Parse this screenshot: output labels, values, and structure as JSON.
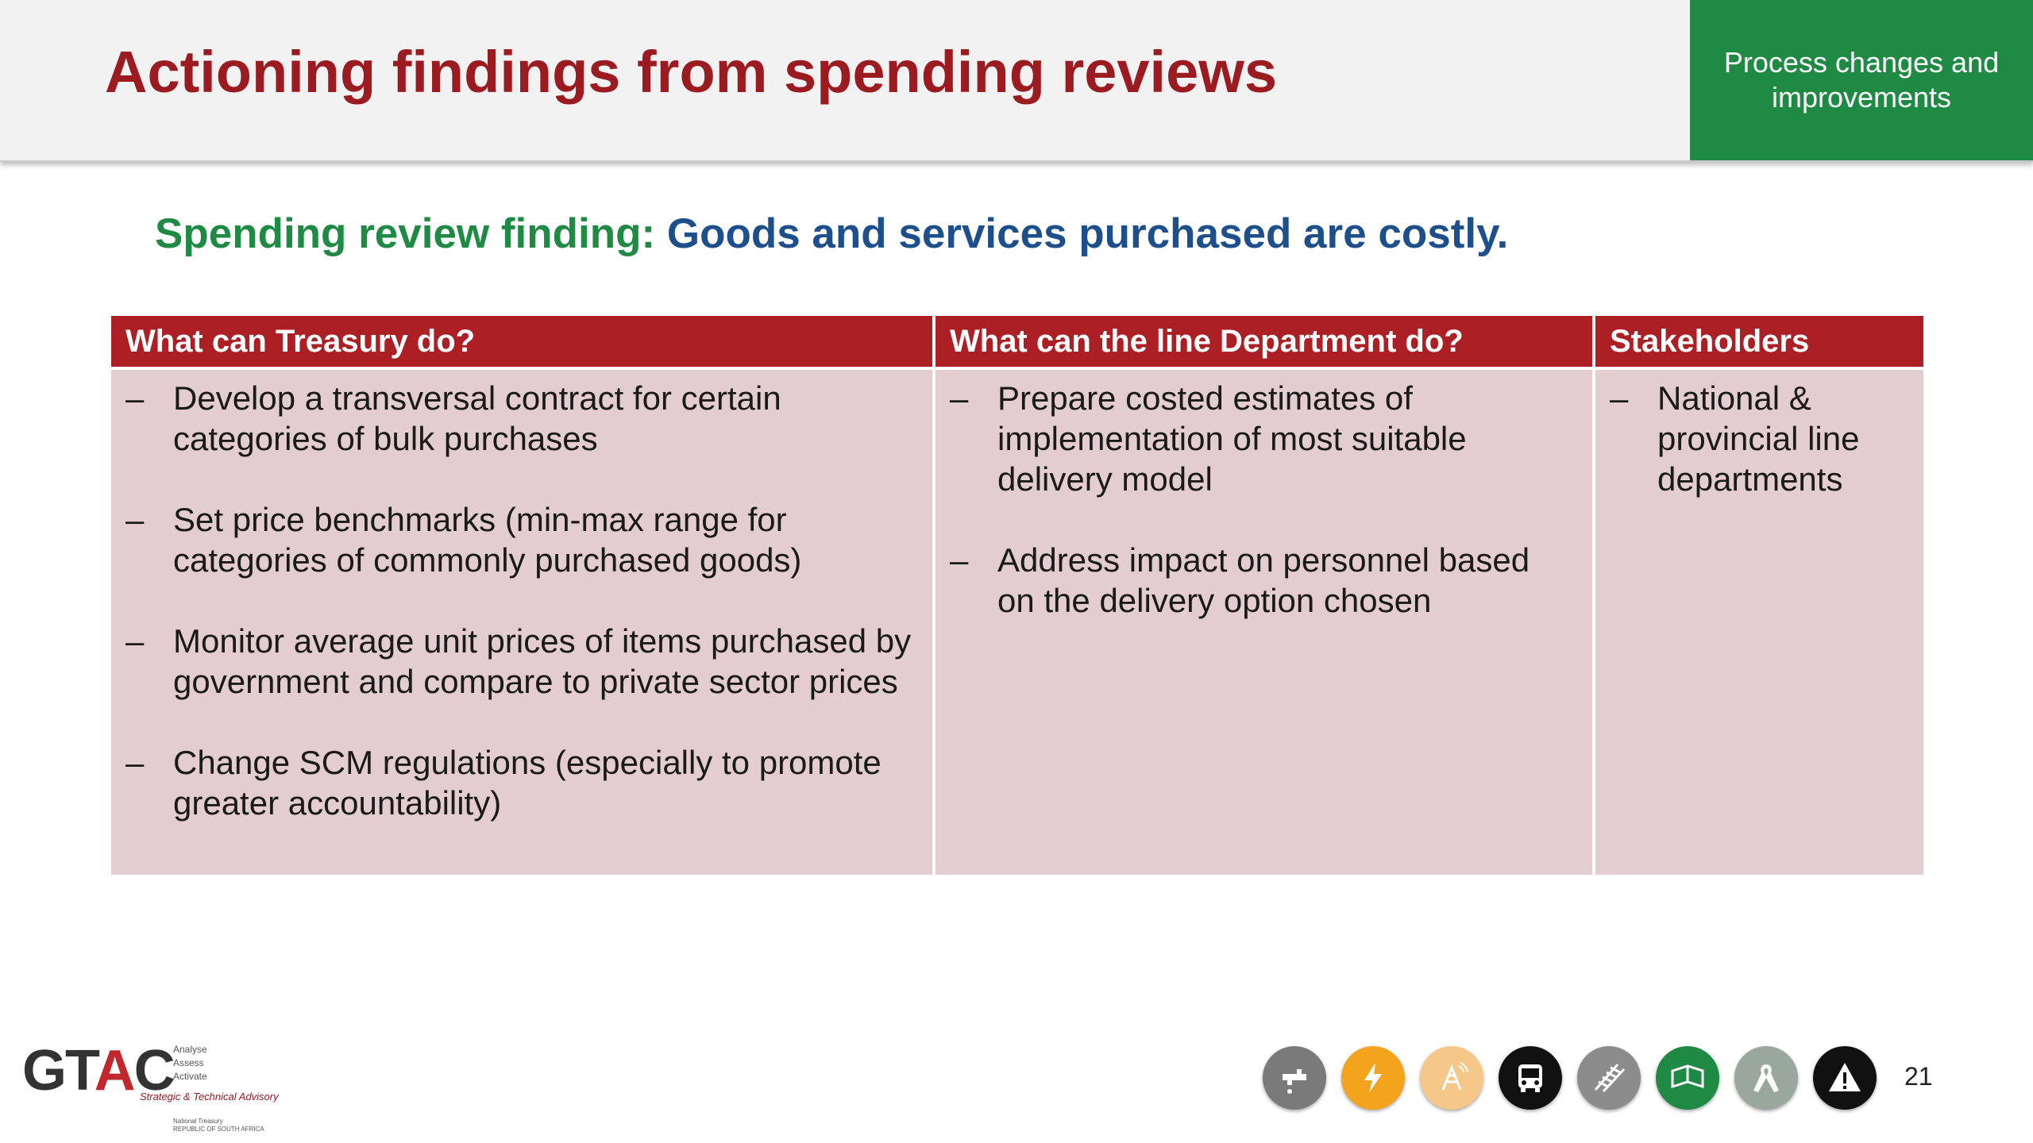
{
  "header": {
    "title": "Actioning findings from spending reviews",
    "section_tag": "Process changes and improvements"
  },
  "finding": {
    "label": "Spending review finding:",
    "text": "Goods and services purchased are costly."
  },
  "table": {
    "columns": [
      {
        "header": "What can Treasury do?",
        "items": [
          "Develop a transversal contract for certain categories of bulk purchases",
          "Set price benchmarks (min-max range for categories of commonly purchased goods)",
          "Monitor average unit prices of items purchased by government and compare to private sector prices",
          "Change SCM regulations (especially to promote greater accountability)"
        ]
      },
      {
        "header": "What can the line Department do?",
        "items": [
          "Prepare costed estimates of implementation of most suitable delivery model",
          "Address impact on personnel based on the delivery option chosen"
        ]
      },
      {
        "header": "Stakeholders",
        "items": [
          "National & provincial line departments"
        ]
      }
    ],
    "bullet_char": "–"
  },
  "footer": {
    "logo": {
      "text_g": "GT",
      "text_a": "A",
      "text_c": "C",
      "taglines": [
        "Analyse",
        "Assess",
        "Activate"
      ],
      "subtitle": "Strategic & Technical Advisory",
      "national_treasury": "National Treasury",
      "republic": "REPUBLIC OF SOUTH AFRICA"
    },
    "icons": [
      {
        "name": "water-tap-icon",
        "color": "#7a7a7a"
      },
      {
        "name": "electricity-icon",
        "color": "#f3a41c"
      },
      {
        "name": "telecom-icon",
        "color": "#f5c889"
      },
      {
        "name": "bus-icon",
        "color": "#111111"
      },
      {
        "name": "rail-icon",
        "color": "#8c8c8c"
      },
      {
        "name": "book-icon",
        "color": "#1f8a43"
      },
      {
        "name": "ribbon-icon",
        "color": "#9aa79c"
      },
      {
        "name": "warning-icon",
        "color": "#111111"
      }
    ],
    "page_number": "21"
  },
  "colors": {
    "title": "#9b1b21",
    "section_tag_bg": "#1f8a43",
    "finding_label": "#1f8a43",
    "finding_text": "#1d4f8c",
    "table_header_bg": "#ac1f24",
    "table_body_bg": "#e4cdd0"
  }
}
